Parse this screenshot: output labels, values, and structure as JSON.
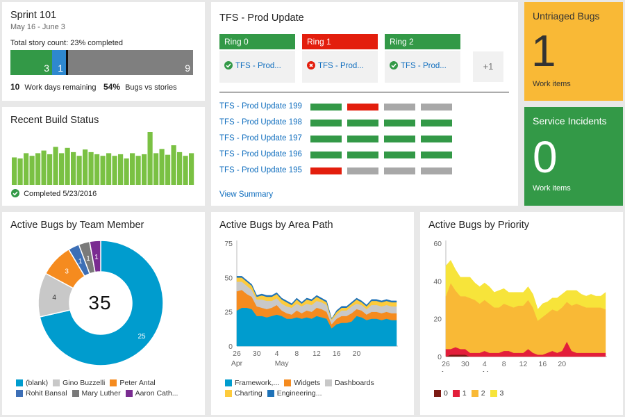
{
  "colors": {
    "green": "#339947",
    "red": "#e31e0d",
    "gray": "#a8a8a8",
    "blue": "#2e88cf",
    "accent_link": "#106ebe",
    "yellow_tile": "#f9b936",
    "green_tile": "#339947",
    "build_bar": "#7ac143",
    "donut_blank": "#009cce",
    "donut_gino": "#c8c8c8",
    "donut_peter": "#f58b1f",
    "donut_rohit": "#3d6fb6",
    "donut_mary": "#7a7a7a",
    "donut_aaron": "#7a2c91"
  },
  "sprint": {
    "title": "Sprint 101",
    "dates": "May 16 - June 3",
    "story_count_label": "Total story count: 23% completed",
    "segments": [
      {
        "label": "3",
        "value": 3,
        "color": "#339947"
      },
      {
        "label": "1",
        "value": 1,
        "color": "#2e88cf"
      },
      {
        "label": "9",
        "value": 9,
        "color": "#7f7f7f"
      }
    ],
    "days_value": "10",
    "days_label": "Work days remaining",
    "bugs_value": "54%",
    "bugs_label": "Bugs vs stories"
  },
  "build": {
    "title": "Recent Build Status",
    "status_text": "Completed 5/23/2016",
    "bar_values": [
      0.52,
      0.5,
      0.6,
      0.55,
      0.6,
      0.65,
      0.58,
      0.72,
      0.6,
      0.7,
      0.62,
      0.55,
      0.67,
      0.62,
      0.58,
      0.55,
      0.6,
      0.55,
      0.58,
      0.5,
      0.6,
      0.55,
      0.58,
      1.0,
      0.6,
      0.68,
      0.57,
      0.75,
      0.62,
      0.55,
      0.6
    ]
  },
  "tfs": {
    "title": "TFS - Prod Update",
    "rings": [
      {
        "name": "Ring 0",
        "status": "success",
        "item": "TFS - Prod..."
      },
      {
        "name": "Ring 1",
        "status": "failed",
        "item": "TFS - Prod..."
      },
      {
        "name": "Ring 2",
        "status": "success",
        "item": "TFS - Prod..."
      }
    ],
    "more_label": "+1",
    "history": [
      {
        "name": "TFS - Prod Update 199",
        "states": [
          "success",
          "failed",
          "pending",
          "pending"
        ]
      },
      {
        "name": "TFS - Prod Update 198",
        "states": [
          "success",
          "success",
          "success",
          "success"
        ]
      },
      {
        "name": "TFS - Prod Update 197",
        "states": [
          "success",
          "success",
          "success",
          "success"
        ]
      },
      {
        "name": "TFS - Prod Update 196",
        "states": [
          "success",
          "success",
          "success",
          "success"
        ]
      },
      {
        "name": "TFS - Prod Update 195",
        "states": [
          "failed",
          "pending",
          "pending",
          "pending"
        ]
      }
    ],
    "view_summary": "View Summary"
  },
  "untriaged": {
    "title": "Untriaged Bugs",
    "count": "1",
    "unit": "Work items"
  },
  "incidents": {
    "title": "Service Incidents",
    "count": "0",
    "unit": "Work items"
  },
  "team_bugs": {
    "title": "Active Bugs by Team Member",
    "total": "35",
    "chart_data": {
      "type": "pie",
      "title": "Active Bugs by Team Member",
      "slices": [
        {
          "name": "(blank)",
          "value": 25,
          "color": "#009cce"
        },
        {
          "name": "Gino Buzzelli",
          "value": 4,
          "color": "#c8c8c8"
        },
        {
          "name": "Peter Antal",
          "value": 3,
          "color": "#f58b1f"
        },
        {
          "name": "Rohit Bansal",
          "value": 1,
          "color": "#3d6fb6"
        },
        {
          "name": "Mary Luther",
          "value": 1,
          "color": "#7a7a7a"
        },
        {
          "name": "Aaron Cath...",
          "value": 1,
          "color": "#7a2c91"
        }
      ]
    }
  },
  "area_bugs": {
    "title": "Active Bugs by Area Path",
    "x_ticks": [
      "26",
      "30",
      "4",
      "8",
      "12",
      "16",
      "20"
    ],
    "x_month_labels": [
      "Apr",
      "May"
    ],
    "y_ticks": [
      "0",
      "25",
      "50",
      "75"
    ],
    "chart_data": {
      "type": "area",
      "title": "Active Bugs by Area Path",
      "stacked": true,
      "ylim": [
        0,
        75
      ],
      "x_start": "Apr 26",
      "series": [
        {
          "name": "Framework,...",
          "color": "#009cce",
          "values": [
            26,
            28,
            28,
            27,
            22,
            22,
            21,
            22,
            23,
            22,
            20,
            20,
            21,
            20,
            21,
            20,
            22,
            21,
            20,
            13,
            16,
            17,
            17,
            18,
            22,
            21,
            19,
            20,
            20,
            19,
            20,
            19,
            19
          ]
        },
        {
          "name": "Widgets",
          "color": "#f58b1f",
          "values": [
            14,
            13,
            10,
            9,
            7,
            6,
            6,
            6,
            7,
            4,
            4,
            3,
            5,
            4,
            5,
            5,
            6,
            6,
            5,
            3,
            4,
            5,
            5,
            6,
            5,
            5,
            4,
            5,
            5,
            5,
            5,
            5,
            5
          ]
        },
        {
          "name": "Dashboards",
          "color": "#c8c8c8",
          "values": [
            7,
            6,
            6,
            5,
            5,
            6,
            6,
            5,
            5,
            5,
            5,
            5,
            5,
            5,
            5,
            5,
            5,
            5,
            5,
            3,
            3,
            4,
            4,
            5,
            4,
            4,
            4,
            5,
            5,
            5,
            5,
            5,
            5
          ]
        },
        {
          "name": "Charting",
          "color": "#fdcb3c",
          "values": [
            3,
            3,
            3,
            3,
            2,
            3,
            3,
            3,
            3,
            3,
            3,
            2,
            3,
            2,
            3,
            3,
            3,
            2,
            2,
            1,
            2,
            2,
            2,
            2,
            3,
            2,
            2,
            3,
            3,
            3,
            3,
            3,
            3
          ]
        },
        {
          "name": "Engineering...",
          "color": "#1e72b8",
          "values": [
            1,
            1,
            1,
            1,
            1,
            1,
            1,
            1,
            1,
            1,
            1,
            1,
            1,
            1,
            1,
            1,
            1,
            1,
            1,
            0,
            1,
            1,
            1,
            1,
            1,
            1,
            1,
            1,
            1,
            1,
            1,
            1,
            1
          ]
        }
      ]
    }
  },
  "priority_bugs": {
    "title": "Active Bugs by Priority",
    "x_ticks": [
      "26",
      "30",
      "4",
      "8",
      "12",
      "16",
      "20"
    ],
    "x_month_labels": [
      "Apr",
      "May"
    ],
    "y_ticks": [
      "0",
      "20",
      "40",
      "60"
    ],
    "chart_data": {
      "type": "area",
      "title": "Active Bugs by Priority",
      "stacked": true,
      "ylim": [
        0,
        60
      ],
      "x_start": "Apr 26",
      "series": [
        {
          "name": "0",
          "color": "#7b1a13",
          "values": [
            0,
            1,
            1,
            1,
            1,
            0,
            0,
            0,
            0,
            0,
            0,
            0,
            0,
            0,
            0,
            0,
            0,
            0,
            0,
            0,
            0,
            0,
            0,
            0,
            0,
            0,
            0,
            0,
            0,
            0,
            0,
            0,
            0,
            0
          ]
        },
        {
          "name": "1",
          "color": "#e31e3a",
          "values": [
            4,
            3,
            4,
            3,
            3,
            2,
            2,
            2,
            3,
            2,
            2,
            2,
            3,
            3,
            2,
            2,
            2,
            4,
            2,
            1,
            1,
            2,
            3,
            2,
            3,
            8,
            3,
            2,
            2,
            2,
            2,
            2,
            2,
            2
          ]
        },
        {
          "name": "2",
          "color": "#f9b936",
          "values": [
            28,
            35,
            30,
            28,
            28,
            29,
            28,
            26,
            27,
            26,
            24,
            24,
            25,
            24,
            24,
            25,
            25,
            26,
            24,
            18,
            20,
            21,
            22,
            22,
            23,
            21,
            24,
            26,
            25,
            24,
            24,
            24,
            24,
            23
          ]
        },
        {
          "name": "3",
          "color": "#f7e43a",
          "values": [
            16,
            12,
            11,
            10,
            10,
            11,
            9,
            9,
            9,
            9,
            8,
            9,
            8,
            7,
            8,
            7,
            7,
            7,
            7,
            6,
            7,
            6,
            6,
            7,
            7,
            6,
            8,
            7,
            6,
            6,
            7,
            6,
            6,
            9
          ]
        }
      ]
    }
  }
}
